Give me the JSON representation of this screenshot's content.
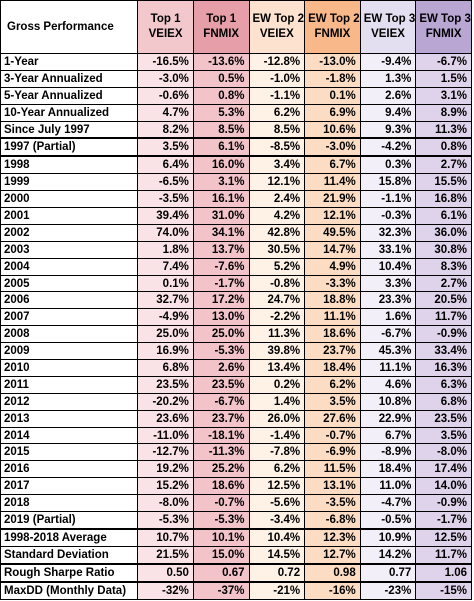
{
  "header": {
    "title": "Gross Performance",
    "columns": [
      {
        "line1": "Top 1",
        "line2": "VEIEX"
      },
      {
        "line1": "Top 1",
        "line2": "FNMIX"
      },
      {
        "line1": "EW Top 2",
        "line2": "VEIEX"
      },
      {
        "line1": "EW Top 2",
        "line2": "FNMIX"
      },
      {
        "line1": "EW Top 3",
        "line2": "VEIEX"
      },
      {
        "line1": "EW Top 3",
        "line2": "FNMIX"
      }
    ]
  },
  "rows": [
    {
      "label": "1-Year",
      "values": [
        "-16.5%",
        "-13.6%",
        "-12.8%",
        "-13.0%",
        "-9.4%",
        "-6.7%"
      ]
    },
    {
      "label": "3-Year Annualized",
      "values": [
        "-3.0%",
        "0.5%",
        "-1.0%",
        "-1.8%",
        "1.3%",
        "1.5%"
      ]
    },
    {
      "label": "5-Year Annualized",
      "values": [
        "-0.6%",
        "0.8%",
        "-1.1%",
        "0.1%",
        "2.6%",
        "3.1%"
      ]
    },
    {
      "label": "10-Year Annualized",
      "values": [
        "4.7%",
        "5.3%",
        "6.2%",
        "6.9%",
        "9.4%",
        "8.9%"
      ]
    },
    {
      "label": "Since July 1997",
      "values": [
        "8.2%",
        "8.5%",
        "8.5%",
        "10.6%",
        "9.3%",
        "11.3%"
      ]
    },
    {
      "label": "1997 (Partial)",
      "values": [
        "3.5%",
        "6.1%",
        "-8.5%",
        "-3.0%",
        "-4.2%",
        "0.8%"
      ]
    },
    {
      "label": "1998",
      "values": [
        "6.4%",
        "16.0%",
        "3.4%",
        "6.7%",
        "0.3%",
        "2.7%"
      ]
    },
    {
      "label": "1999",
      "values": [
        "-6.5%",
        "3.1%",
        "12.1%",
        "11.4%",
        "15.8%",
        "15.5%"
      ]
    },
    {
      "label": "2000",
      "values": [
        "-3.5%",
        "16.1%",
        "2.4%",
        "21.9%",
        "-1.1%",
        "16.8%"
      ]
    },
    {
      "label": "2001",
      "values": [
        "39.4%",
        "31.0%",
        "4.2%",
        "12.1%",
        "-0.3%",
        "6.1%"
      ]
    },
    {
      "label": "2002",
      "values": [
        "74.0%",
        "34.1%",
        "42.8%",
        "49.5%",
        "32.3%",
        "36.0%"
      ]
    },
    {
      "label": "2003",
      "values": [
        "1.8%",
        "13.7%",
        "30.5%",
        "14.7%",
        "33.1%",
        "30.8%"
      ]
    },
    {
      "label": "2004",
      "values": [
        "7.4%",
        "-7.6%",
        "5.2%",
        "4.9%",
        "10.4%",
        "8.3%"
      ]
    },
    {
      "label": "2005",
      "values": [
        "0.1%",
        "-1.7%",
        "-0.8%",
        "-3.3%",
        "3.3%",
        "2.7%"
      ]
    },
    {
      "label": "2006",
      "values": [
        "32.7%",
        "17.2%",
        "24.7%",
        "18.8%",
        "23.3%",
        "20.5%"
      ]
    },
    {
      "label": "2007",
      "values": [
        "-4.9%",
        "13.0%",
        "-2.2%",
        "11.1%",
        "1.6%",
        "11.7%"
      ]
    },
    {
      "label": "2008",
      "values": [
        "25.0%",
        "25.0%",
        "11.3%",
        "18.6%",
        "-6.7%",
        "-0.9%"
      ]
    },
    {
      "label": "2009",
      "values": [
        "16.9%",
        "-5.3%",
        "39.8%",
        "23.7%",
        "45.3%",
        "33.4%"
      ]
    },
    {
      "label": "2010",
      "values": [
        "6.8%",
        "2.6%",
        "13.4%",
        "18.4%",
        "11.1%",
        "16.3%"
      ]
    },
    {
      "label": "2011",
      "values": [
        "23.5%",
        "23.5%",
        "0.2%",
        "6.2%",
        "4.6%",
        "6.3%"
      ]
    },
    {
      "label": "2012",
      "values": [
        "-20.2%",
        "-6.7%",
        "1.4%",
        "3.5%",
        "10.8%",
        "6.8%"
      ]
    },
    {
      "label": "2013",
      "values": [
        "23.6%",
        "23.7%",
        "26.0%",
        "27.6%",
        "22.9%",
        "23.5%"
      ]
    },
    {
      "label": "2014",
      "values": [
        "-11.0%",
        "-18.1%",
        "-1.4%",
        "-0.7%",
        "6.7%",
        "3.5%"
      ]
    },
    {
      "label": "2015",
      "values": [
        "-12.7%",
        "-11.3%",
        "-7.8%",
        "-6.9%",
        "-8.9%",
        "-8.0%"
      ]
    },
    {
      "label": "2016",
      "values": [
        "19.2%",
        "25.2%",
        "6.2%",
        "11.5%",
        "18.4%",
        "17.4%"
      ]
    },
    {
      "label": "2017",
      "values": [
        "15.2%",
        "18.6%",
        "12.5%",
        "13.1%",
        "11.0%",
        "14.0%"
      ]
    },
    {
      "label": "2018",
      "values": [
        "-8.0%",
        "-0.7%",
        "-5.6%",
        "-3.5%",
        "-4.7%",
        "-0.9%"
      ]
    },
    {
      "label": "2019 (Partial)",
      "values": [
        "-5.3%",
        "-5.3%",
        "-3.4%",
        "-6.8%",
        "-0.5%",
        "-1.7%"
      ]
    },
    {
      "label": "1998-2018 Average",
      "values": [
        "10.7%",
        "10.1%",
        "10.4%",
        "12.3%",
        "10.9%",
        "12.5%"
      ]
    },
    {
      "label": "Standard Deviation",
      "values": [
        "21.5%",
        "15.0%",
        "14.5%",
        "12.7%",
        "14.2%",
        "11.7%"
      ]
    },
    {
      "label": "Rough Sharpe Ratio",
      "values": [
        "0.50",
        "0.67",
        "0.72",
        "0.98",
        "0.77",
        "1.06"
      ]
    },
    {
      "label": "MaxDD (Monthly Data)",
      "values": [
        "-32%",
        "-37%",
        "-21%",
        "-16%",
        "-23%",
        "-15%"
      ]
    }
  ],
  "thick_border_before_rows": [
    5,
    6,
    28,
    30,
    31
  ],
  "colors": {
    "header": [
      "#f2c8cd",
      "#e69ea8",
      "#fde3cf",
      "#f8b88a",
      "#e4dff0",
      "#b9a6d3"
    ],
    "cells": [
      "#f9e3e6",
      "#f2c4ca",
      "#fef1e6",
      "#fcdcc2",
      "#f2eff8",
      "#ded3ea"
    ]
  }
}
